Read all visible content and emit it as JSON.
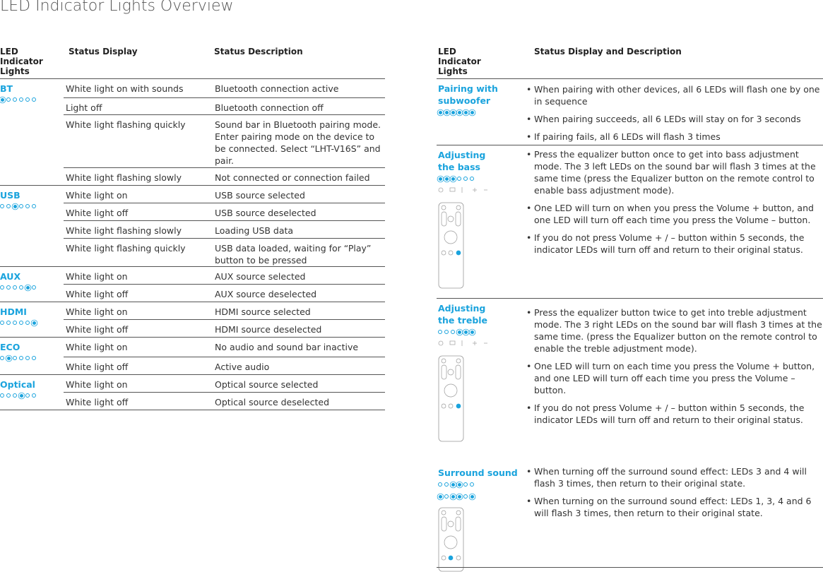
{
  "title": "LED Indicator Lights Overview",
  "left_table": {
    "headers": [
      "LED Indicator Lights",
      "Status Display",
      "Status Description"
    ],
    "groups": [
      {
        "name": "BT",
        "rows": [
          [
            "White light on with sounds",
            "Bluetooth connection active"
          ],
          [
            "Light off",
            "Bluetooth connection off"
          ],
          [
            "White light flashing quickly",
            "Sound bar in Bluetooth pairing mode. Enter pairing mode on the device to be connected. Select “LHT-V16S” and pair."
          ],
          [
            "White light flashing slowly",
            "Not connected or connection failed"
          ]
        ]
      },
      {
        "name": "USB",
        "rows": [
          [
            "White light on",
            "USB source selected"
          ],
          [
            "White light off",
            "USB source deselected"
          ],
          [
            "White light flashing slowly",
            "Loading USB data"
          ],
          [
            "White light flashing quickly",
            "USB data loaded, waiting for “Play” button to be pressed"
          ]
        ]
      },
      {
        "name": "AUX",
        "rows": [
          [
            "White light on",
            "AUX source selected"
          ],
          [
            "White light off",
            "AUX source deselected"
          ]
        ]
      },
      {
        "name": "HDMI",
        "rows": [
          [
            "White light on",
            "HDMI source selected"
          ],
          [
            "White light off",
            "HDMI source deselected"
          ]
        ]
      },
      {
        "name": "ECO",
        "rows": [
          [
            "White light on",
            "No audio and sound bar inactive"
          ],
          [
            "White light off",
            "Active audio"
          ]
        ]
      },
      {
        "name": "Optical",
        "rows": [
          [
            "White light on",
            "Optical source selected"
          ],
          [
            "White light off",
            "Optical source deselected"
          ]
        ]
      }
    ]
  },
  "right_table": {
    "headers": [
      "LED Indicator Lights",
      "Status Display and Description"
    ],
    "sections": [
      {
        "name": "Pairing with subwoofer",
        "bullets": [
          "When pairing with other devices, all 6 LEDs will flash one by one in sequence",
          "When pairing succeeds, all 6 LEDs will stay on for 3 seconds",
          "If pairing fails, all 6 LEDs will flash 3 times"
        ]
      },
      {
        "name": "Adjusting the bass",
        "bullets": [
          "Press the equalizer button once to get into bass adjustment mode. The 3 left LEDs on the sound bar will flash 3 times at the same time (press the Equalizer button on the remote control to enable bass adjustment mode).",
          "One LED will turn on when you press the Volume + button, and one LED will turn off each time you press the Volume – button.",
          "If you do not press Volume + / – button within 5 seconds, the indicator LEDs will turn off and return to their original status."
        ]
      },
      {
        "name": "Adjusting the treble",
        "bullets": [
          "Press the equalizer button twice to get into treble adjustment mode. The 3 right LEDs on the sound bar will flash 3 times at the same time. (press the Equalizer button on the remote control to enable the treble adjustment mode).",
          "One LED will turn on each time you press the Volume + button, and one LED will turn off each time you press the Volume – button.",
          "If you do not press Volume + / – button within 5 seconds, the indicator LEDs will turn off and return to their original status."
        ]
      },
      {
        "name": "Surround sound",
        "bullets": [
          "When turning off the surround sound effect: LEDs 3 and 4 will flash 3 times, then return to their original state.",
          "When turning on the surround sound effect: LEDs 1, 3, 4 and 6 will flash 3 times, then return to their original state."
        ]
      }
    ]
  }
}
